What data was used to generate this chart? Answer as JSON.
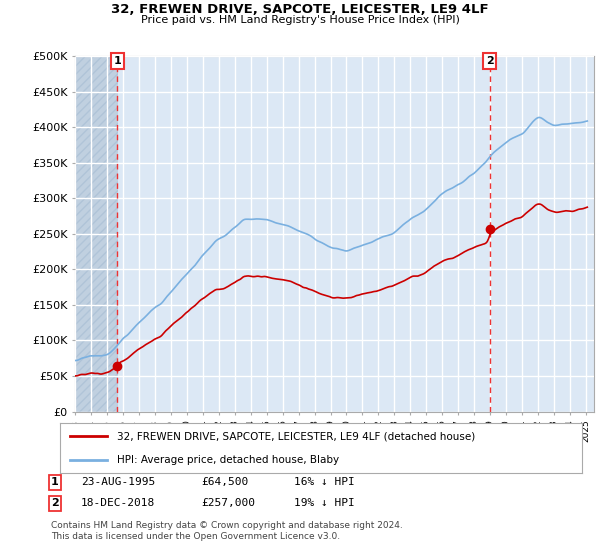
{
  "title": "32, FREWEN DRIVE, SAPCOTE, LEICESTER, LE9 4LF",
  "subtitle": "Price paid vs. HM Land Registry's House Price Index (HPI)",
  "ylabel_ticks": [
    "£0",
    "£50K",
    "£100K",
    "£150K",
    "£200K",
    "£250K",
    "£300K",
    "£350K",
    "£400K",
    "£450K",
    "£500K"
  ],
  "ytick_values": [
    0,
    50000,
    100000,
    150000,
    200000,
    250000,
    300000,
    350000,
    400000,
    450000,
    500000
  ],
  "ylim": [
    0,
    500000
  ],
  "sale1_date": 1995.645,
  "sale1_price": 64500,
  "sale2_date": 2018.962,
  "sale2_price": 257000,
  "legend_line1": "32, FREWEN DRIVE, SAPCOTE, LEICESTER, LE9 4LF (detached house)",
  "legend_line2": "HPI: Average price, detached house, Blaby",
  "footnote1": "Contains HM Land Registry data © Crown copyright and database right 2024.",
  "footnote2": "This data is licensed under the Open Government Licence v3.0.",
  "row1_label": "1",
  "row1_date": "23-AUG-1995",
  "row1_price": "£64,500",
  "row1_hpi": "16% ↓ HPI",
  "row2_label": "2",
  "row2_date": "18-DEC-2018",
  "row2_price": "£257,000",
  "row2_hpi": "19% ↓ HPI",
  "price_color": "#cc0000",
  "hpi_color": "#7ab0e0",
  "vline_color": "#ee3333",
  "bg_color": "#dce8f5",
  "hatch_color": "#c0d0e0",
  "grid_color": "#ffffff",
  "xmin": 1993,
  "xmax": 2025.5
}
